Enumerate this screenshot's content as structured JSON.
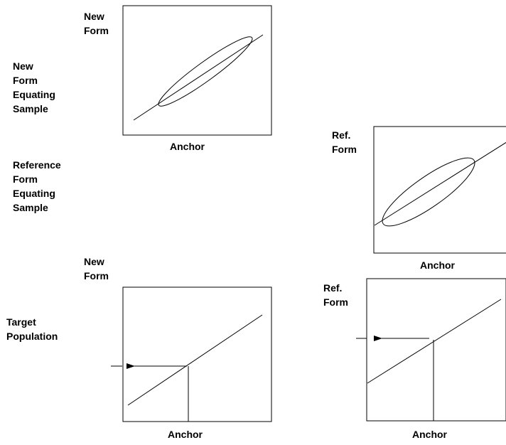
{
  "row_labels": {
    "new_sample": [
      "New",
      "Form",
      "Equating",
      "Sample"
    ],
    "ref_sample": [
      "Reference",
      "Form",
      "Equating",
      "Sample"
    ],
    "target": [
      "Target",
      "Population"
    ]
  },
  "panels": {
    "new_form_sample": {
      "y_label": [
        "New",
        "Form"
      ],
      "x_label": "Anchor"
    },
    "ref_form_sample": {
      "y_label": [
        "Ref.",
        "Form"
      ],
      "x_label": "Anchor"
    },
    "new_form_target": {
      "y_label": [
        "New",
        "Form"
      ],
      "x_label": "Anchor"
    },
    "ref_form_target": {
      "y_label": [
        "Ref.",
        "Form"
      ],
      "x_label": "Anchor"
    }
  },
  "colors": {
    "line": "#000000",
    "background": "#ffffff"
  }
}
